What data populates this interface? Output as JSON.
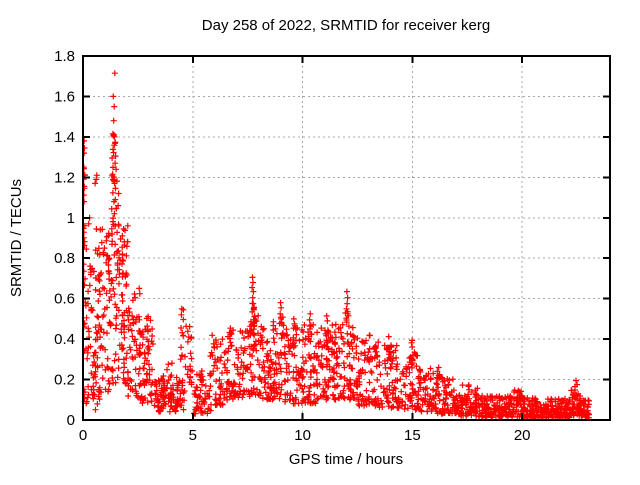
{
  "chart_data": {
    "type": "scatter",
    "title": "Day 258 of 2022, SRMTID for receiver kerg",
    "xlabel": "GPS time / hours",
    "ylabel": "SRMTID / TECUs",
    "xlim": [
      0,
      24
    ],
    "ylim": [
      0,
      1.8
    ],
    "xticks": [
      0,
      5,
      10,
      15,
      20
    ],
    "xtick_labels": [
      "0",
      "5",
      "10",
      "15",
      "20"
    ],
    "yticks": [
      0,
      0.2,
      0.4,
      0.6,
      0.8,
      1.0,
      1.2,
      1.4,
      1.6,
      1.8
    ],
    "ytick_labels": [
      "0",
      "0.2",
      "0.4",
      "0.6",
      "0.8",
      "1",
      "1.2",
      "1.4",
      "1.6",
      "1.8"
    ],
    "grid": true,
    "legend": "none",
    "marker": {
      "symbol": "plus",
      "size": 7,
      "stroke_width": 1.2
    },
    "colors": {
      "marker": "#ff0000",
      "grid": "#a8a8a8",
      "border": "#000000",
      "text": "#000000",
      "background": "#ffffff"
    },
    "seed": 42,
    "notable_points": [
      [
        0.05,
        1.38
      ],
      [
        0.07,
        1.345
      ],
      [
        0.05,
        1.32
      ],
      [
        0.04,
        1.25
      ],
      [
        0.08,
        1.21
      ],
      [
        0.06,
        1.155
      ],
      [
        0.05,
        1.08
      ],
      [
        0.3,
        1.0
      ],
      [
        0.26,
        0.97
      ],
      [
        0.55,
        1.17
      ],
      [
        0.63,
        1.21
      ],
      [
        0.6,
        1.19
      ],
      [
        1.45,
        1.715
      ],
      [
        1.38,
        1.6
      ],
      [
        1.42,
        1.55
      ],
      [
        1.4,
        1.48
      ],
      [
        1.36,
        1.415
      ],
      [
        1.385,
        1.405
      ],
      [
        1.41,
        1.41
      ],
      [
        1.43,
        1.4
      ],
      [
        1.46,
        1.27
      ],
      [
        1.35,
        1.215
      ],
      [
        1.37,
        1.19
      ],
      [
        1.4,
        1.185
      ],
      [
        1.425,
        1.18
      ],
      [
        1.44,
        1.17
      ],
      [
        1.41,
        1.08
      ],
      [
        1.43,
        1.02
      ],
      [
        1.47,
        0.96
      ],
      [
        1.62,
        1.12
      ],
      [
        1.6,
        1.06
      ],
      [
        7.72,
        0.705
      ],
      [
        7.74,
        0.68
      ],
      [
        7.7,
        0.655
      ],
      [
        7.76,
        0.635
      ],
      [
        7.73,
        0.605
      ],
      [
        7.75,
        0.575
      ],
      [
        7.78,
        0.545
      ],
      [
        9.0,
        0.58
      ],
      [
        9.02,
        0.555
      ],
      [
        8.98,
        0.525
      ],
      [
        12.02,
        0.635
      ],
      [
        12.05,
        0.605
      ],
      [
        12.03,
        0.575
      ],
      [
        12.0,
        0.55
      ],
      [
        12.06,
        0.525
      ],
      [
        11.1,
        0.515
      ],
      [
        11.13,
        0.49
      ],
      [
        10.35,
        0.525
      ],
      [
        10.32,
        0.495
      ],
      [
        9.6,
        0.5
      ],
      [
        9.63,
        0.475
      ],
      [
        4.5,
        0.55
      ],
      [
        4.48,
        0.52
      ],
      [
        22.45,
        0.195
      ],
      [
        22.5,
        0.175
      ],
      [
        22.4,
        0.165
      ]
    ],
    "density_bands_format": [
      "x_start_hours",
      "x_end_hours",
      "n_points",
      "y_min",
      "y_max",
      "low_bias_shape"
    ],
    "density_bands": [
      [
        0.02,
        0.1,
        26,
        0.07,
        1.4,
        1.0
      ],
      [
        0.1,
        0.5,
        40,
        0.08,
        0.85,
        1.4
      ],
      [
        0.5,
        1.0,
        50,
        0.25,
        0.95,
        1.2
      ],
      [
        0.5,
        1.0,
        15,
        0.05,
        0.25,
        1.0
      ],
      [
        1.0,
        1.3,
        38,
        0.12,
        0.95,
        1.4
      ],
      [
        1.3,
        1.55,
        28,
        0.85,
        1.42,
        1.0
      ],
      [
        1.3,
        1.55,
        18,
        0.15,
        0.85,
        1.0
      ],
      [
        1.55,
        2.05,
        48,
        0.5,
        0.97,
        1.0
      ],
      [
        1.55,
        2.05,
        28,
        0.18,
        0.5,
        1.0
      ],
      [
        2.05,
        2.6,
        40,
        0.25,
        0.68,
        1.2
      ],
      [
        2.05,
        2.6,
        15,
        0.1,
        0.25,
        1.0
      ],
      [
        2.6,
        3.2,
        55,
        0.08,
        0.45,
        1.4
      ],
      [
        2.9,
        3.15,
        8,
        0.35,
        0.53,
        1.0
      ],
      [
        3.2,
        4.45,
        95,
        0.04,
        0.2,
        1.3
      ],
      [
        3.3,
        4.4,
        8,
        0.2,
        0.3,
        1.0
      ],
      [
        4.42,
        4.6,
        10,
        0.3,
        0.55,
        1.0
      ],
      [
        4.6,
        4.95,
        12,
        0.25,
        0.47,
        1.0
      ],
      [
        4.4,
        5.0,
        20,
        0.05,
        0.25,
        1.3
      ],
      [
        5.0,
        5.85,
        60,
        0.03,
        0.25,
        1.4
      ],
      [
        5.8,
        6.0,
        10,
        0.2,
        0.42,
        1.0
      ],
      [
        6.0,
        6.6,
        50,
        0.07,
        0.4,
        1.4
      ],
      [
        6.6,
        7.6,
        80,
        0.1,
        0.46,
        1.3
      ],
      [
        7.6,
        8.0,
        38,
        0.12,
        0.52,
        1.2
      ],
      [
        7.68,
        7.82,
        12,
        0.42,
        0.6,
        1.0
      ],
      [
        8.0,
        8.6,
        55,
        0.1,
        0.48,
        1.4
      ],
      [
        8.6,
        9.2,
        48,
        0.1,
        0.5,
        1.4
      ],
      [
        8.95,
        9.1,
        8,
        0.4,
        0.52,
        1.0
      ],
      [
        9.2,
        10.0,
        60,
        0.08,
        0.46,
        1.5
      ],
      [
        9.55,
        9.7,
        8,
        0.35,
        0.47,
        1.0
      ],
      [
        10.0,
        10.6,
        52,
        0.08,
        0.48,
        1.5
      ],
      [
        10.25,
        10.42,
        8,
        0.36,
        0.5,
        1.0
      ],
      [
        10.6,
        11.3,
        60,
        0.1,
        0.46,
        1.4
      ],
      [
        11.05,
        11.18,
        10,
        0.34,
        0.48,
        1.0
      ],
      [
        11.3,
        12.0,
        60,
        0.1,
        0.48,
        1.4
      ],
      [
        12.0,
        12.5,
        46,
        0.1,
        0.46,
        1.3
      ],
      [
        11.95,
        12.12,
        10,
        0.38,
        0.56,
        1.0
      ],
      [
        12.5,
        13.5,
        70,
        0.07,
        0.4,
        1.6
      ],
      [
        12.95,
        13.1,
        8,
        0.28,
        0.42,
        1.0
      ],
      [
        13.25,
        13.4,
        8,
        0.26,
        0.4,
        1.0
      ],
      [
        13.5,
        14.5,
        70,
        0.06,
        0.38,
        1.7
      ],
      [
        13.9,
        14.05,
        10,
        0.26,
        0.42,
        1.0
      ],
      [
        14.5,
        15.3,
        58,
        0.05,
        0.34,
        1.6
      ],
      [
        14.95,
        15.1,
        10,
        0.22,
        0.4,
        1.0
      ],
      [
        15.3,
        16.1,
        58,
        0.04,
        0.28,
        1.6
      ],
      [
        16.1,
        16.9,
        58,
        0.03,
        0.22,
        1.6
      ],
      [
        16.1,
        16.3,
        5,
        0.18,
        0.28,
        1.0
      ],
      [
        16.9,
        18.0,
        90,
        0.02,
        0.13,
        1.3
      ],
      [
        17.0,
        18.0,
        8,
        0.12,
        0.18,
        1.0
      ],
      [
        18.0,
        20.0,
        165,
        0.01,
        0.12,
        1.3
      ],
      [
        19.6,
        20.1,
        12,
        0.1,
        0.15,
        1.0
      ],
      [
        20.0,
        22.2,
        185,
        0.01,
        0.11,
        1.3
      ],
      [
        22.2,
        22.7,
        52,
        0.02,
        0.15,
        1.2
      ],
      [
        22.7,
        23.05,
        32,
        0.01,
        0.1,
        1.3
      ]
    ]
  }
}
